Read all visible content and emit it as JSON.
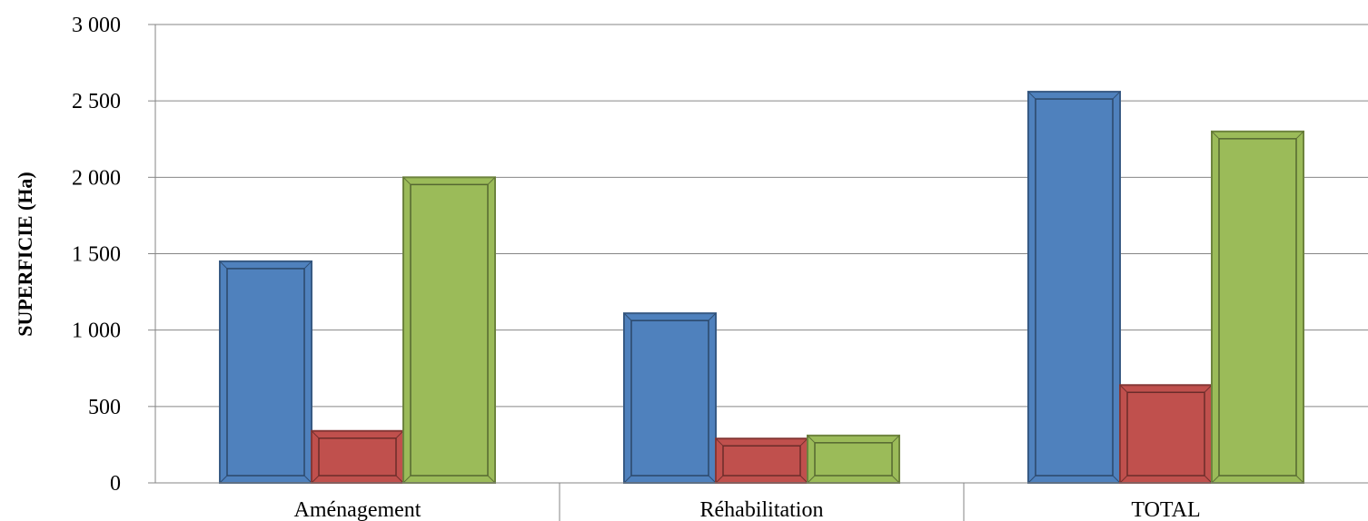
{
  "chart_data": {
    "type": "bar",
    "title": "",
    "xlabel": "",
    "ylabel": "SUPERFICIE (Ha)",
    "categories": [
      "Aménagement",
      "Réhabilitation",
      "TOTAL"
    ],
    "series": [
      {
        "values": [
          1450,
          1110,
          2560
        ],
        "color": "#4f81bd"
      },
      {
        "values": [
          340,
          290,
          640
        ],
        "color": "#c0504d"
      },
      {
        "values": [
          2000,
          310,
          2300
        ],
        "color": "#9bbb59"
      }
    ],
    "ylim": [
      0,
      3000
    ],
    "yticks": [
      0,
      500,
      1000,
      1500,
      2000,
      2500,
      3000
    ],
    "ytick_labels": [
      "0",
      "500",
      "1 000",
      "1 500",
      "2 000",
      "2 500",
      "3 000"
    ],
    "grid": "horizontal",
    "legend": "none"
  }
}
